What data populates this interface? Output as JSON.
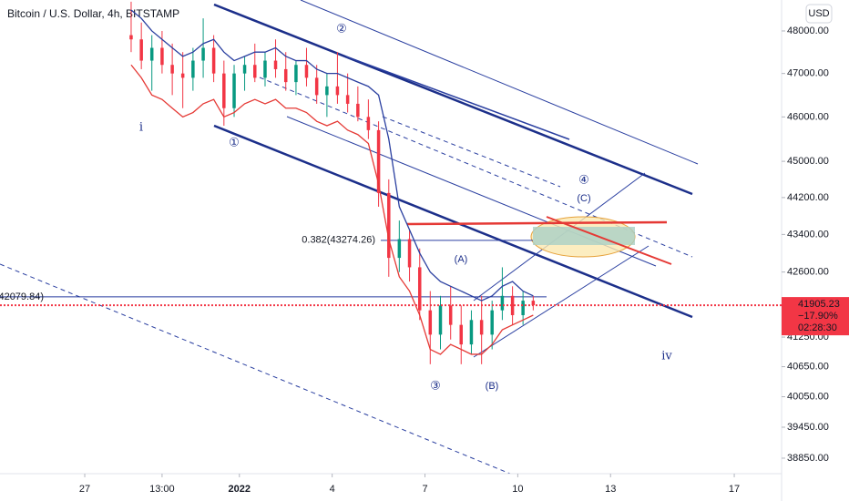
{
  "chart_data": {
    "type": "candlestick",
    "title": "Bitcoin / U.S. Dollar, 4h, BITSTAMP",
    "currency": "USD",
    "log": true,
    "x": [
      1.5,
      1.83,
      2.17,
      2.5,
      2.83,
      3.17,
      3.5,
      3.83,
      4.17,
      4.5,
      4.83,
      5.17,
      5.5,
      5.83,
      6.17,
      6.5,
      6.83,
      7.17,
      7.5,
      7.83,
      8.17,
      8.5,
      8.83,
      9.17,
      9.5,
      9.83,
      10.17,
      10.5,
      10.83,
      11.17,
      11.5,
      11.83,
      12.17,
      12.5,
      12.83,
      13.17,
      13.5,
      13.83,
      14.17,
      14.5
    ],
    "open": [
      47900,
      47800,
      47300,
      47600,
      47200,
      47000,
      46900,
      47300,
      47600,
      47000,
      46200,
      47000,
      47200,
      46900,
      47300,
      47100,
      46800,
      47200,
      46900,
      46500,
      46700,
      46500,
      46300,
      46000,
      45700,
      44300,
      42900,
      43300,
      42700,
      41800,
      41300,
      41900,
      41500,
      41100,
      41600,
      41300,
      41800,
      42100,
      41700,
      42000
    ],
    "high": [
      48700,
      48200,
      47900,
      48000,
      47700,
      47500,
      47600,
      48300,
      47900,
      47300,
      47200,
      47400,
      47700,
      47500,
      47800,
      47500,
      47300,
      47600,
      47200,
      47000,
      47500,
      47000,
      46700,
      46400,
      45900,
      44600,
      43700,
      43500,
      43100,
      42200,
      42100,
      42300,
      41900,
      41800,
      42100,
      42000,
      42700,
      42300,
      42200,
      42100
    ],
    "low": [
      47500,
      47100,
      46600,
      47000,
      46500,
      46200,
      46600,
      46900,
      46800,
      45800,
      46000,
      46600,
      46800,
      46700,
      46900,
      46600,
      46500,
      46700,
      46300,
      46000,
      46300,
      46100,
      45900,
      45500,
      44000,
      42500,
      42600,
      42400,
      41600,
      40700,
      41000,
      41200,
      40700,
      40900,
      40700,
      41000,
      41600,
      41500,
      41500,
      41800
    ],
    "close": [
      47800,
      47300,
      47600,
      47200,
      47000,
      46900,
      47300,
      47600,
      47000,
      46200,
      47000,
      47200,
      46900,
      47300,
      47100,
      46800,
      47200,
      46900,
      46500,
      46700,
      46500,
      46300,
      46000,
      45700,
      44300,
      42900,
      43300,
      42700,
      41800,
      41300,
      41900,
      41500,
      41100,
      41600,
      41300,
      41800,
      42100,
      41700,
      42000,
      41905.23
    ],
    "up_color": "#089981",
    "down_color": "#f23645",
    "series": [
      {
        "color": "#2a3fa0",
        "values": [
          48500,
          48300,
          48000,
          47800,
          47600,
          47400,
          47500,
          47700,
          47800,
          47500,
          47300,
          47400,
          47500,
          47500,
          47600,
          47400,
          47300,
          47300,
          47100,
          47000,
          47000,
          46900,
          46800,
          46700,
          46500,
          45500,
          44000,
          43500,
          43000,
          42600,
          42400,
          42300,
          42200,
          42100,
          42000,
          42100,
          42300,
          42400,
          42200,
          42100
        ]
      },
      {
        "color": "#e53935",
        "values": [
          47200,
          46900,
          46500,
          46400,
          46200,
          46000,
          46100,
          46300,
          46400,
          46000,
          46100,
          46300,
          46400,
          46300,
          46400,
          46200,
          46200,
          46100,
          45900,
          45800,
          45900,
          45700,
          45600,
          45400,
          44500,
          43300,
          42500,
          42200,
          41700,
          41000,
          40900,
          41100,
          41000,
          40900,
          40900,
          41100,
          41400,
          41500,
          41600,
          41700
        ]
      }
    ],
    "ylim": [
      38553,
      48741
    ],
    "yticks": [
      {
        "value": 48000,
        "label": "48000.00"
      },
      {
        "value": 47000,
        "label": "47000.00"
      },
      {
        "value": 46000,
        "label": "46000.00"
      },
      {
        "value": 45000,
        "label": "45000.00"
      },
      {
        "value": 44200,
        "label": "44200.00"
      },
      {
        "value": 43400,
        "label": "43400.00"
      },
      {
        "value": 42600,
        "label": "42600.00"
      },
      {
        "value": 41250,
        "label": "41250.00"
      },
      {
        "value": 40650,
        "label": "40650.00"
      },
      {
        "value": 40050,
        "label": "40050.00"
      },
      {
        "value": 39450,
        "label": "39450.00"
      },
      {
        "value": 38850,
        "label": "38850.00"
      }
    ],
    "xlim": [
      -2.74,
      22.53
    ],
    "xticks": [
      {
        "value": 0,
        "label": "27"
      },
      {
        "value": 2.5,
        "label": "13:00"
      },
      {
        "value": 5,
        "label": "2022"
      },
      {
        "value": 8,
        "label": "4"
      },
      {
        "value": 11,
        "label": "7"
      },
      {
        "value": 14,
        "label": "10"
      },
      {
        "value": 17,
        "label": "13"
      },
      {
        "value": 21,
        "label": "17"
      }
    ],
    "last_price": 41905.23,
    "change_label": "−17.90%",
    "countdown": "02:28:30",
    "level": {
      "value": 42079.84,
      "label": "42079.84)"
    },
    "fib": {
      "value": 43274.26,
      "label": "0.382(43274.26)"
    },
    "annotations": [
      "i",
      "①",
      "②",
      "③",
      "④",
      "(A)",
      "(B)",
      "(C)",
      "iv"
    ]
  }
}
